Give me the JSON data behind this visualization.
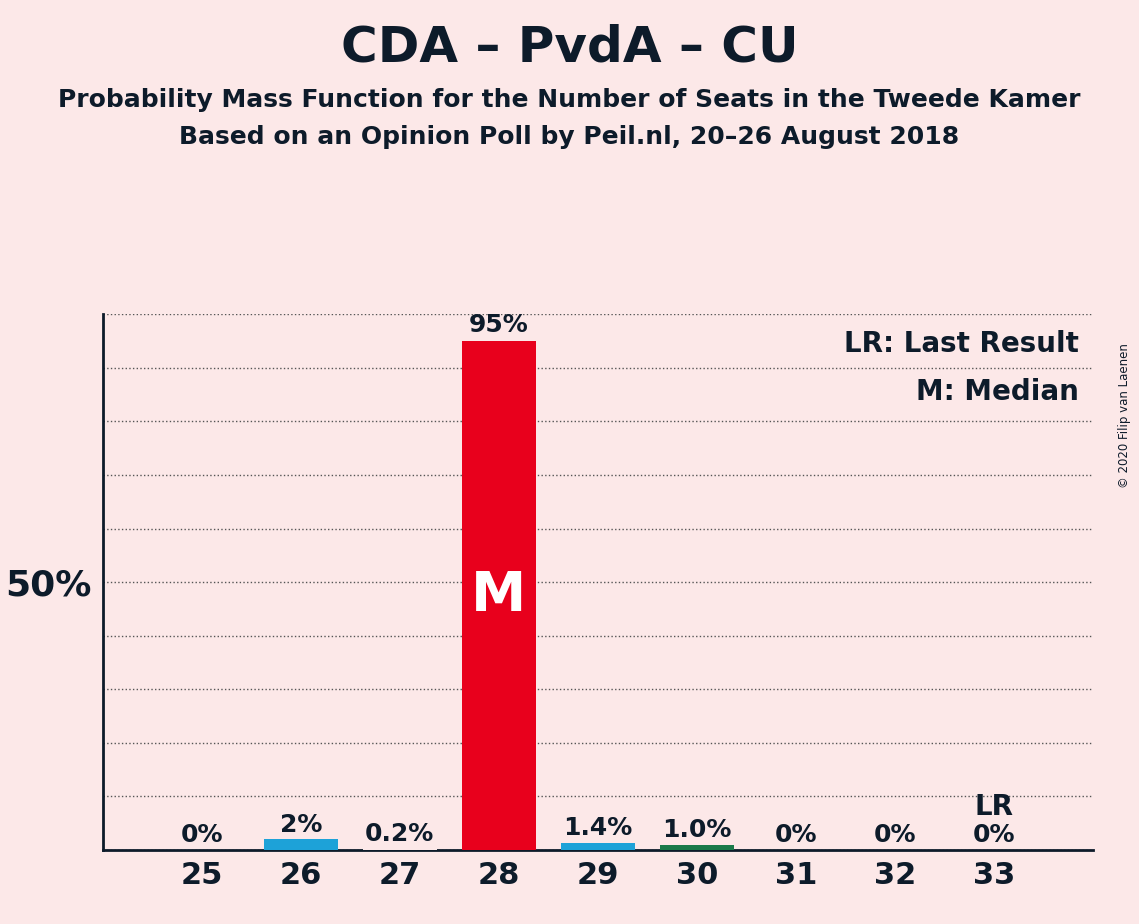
{
  "title": "CDA – PvdA – CU",
  "subtitle1": "Probability Mass Function for the Number of Seats in the Tweede Kamer",
  "subtitle2": "Based on an Opinion Poll by Peil.nl, 20–26 August 2018",
  "copyright": "© 2020 Filip van Laenen",
  "legend_lr": "LR: Last Result",
  "legend_m": "M: Median",
  "background_color": "#fce8e8",
  "seats": [
    25,
    26,
    27,
    28,
    29,
    30,
    31,
    32,
    33
  ],
  "values": [
    0.0,
    2.0,
    0.2,
    95.0,
    1.4,
    1.0,
    0.0,
    0.0,
    0.0
  ],
  "bar_colors": [
    "#fce8e8",
    "#1da2d8",
    "#fce8e8",
    "#e8001c",
    "#1da2d8",
    "#1a7a4a",
    "#fce8e8",
    "#fce8e8",
    "#fce8e8"
  ],
  "labels": [
    "0%",
    "2%",
    "0.2%",
    "95%",
    "1.4%",
    "1.0%",
    "0%",
    "0%",
    "0%"
  ],
  "median_seat": 28,
  "lr_seat": 33,
  "ylim": [
    0,
    100
  ],
  "yticks": [
    0,
    10,
    20,
    30,
    40,
    50,
    60,
    70,
    80,
    90,
    100
  ],
  "ytick_labels": [
    "",
    "",
    "",
    "",
    "",
    "50%",
    "",
    "",
    "",
    "",
    ""
  ],
  "title_fontsize": 36,
  "subtitle_fontsize": 18,
  "bar_label_fontsize": 18,
  "legend_fontsize": 20,
  "text_color": "#0d1b2a",
  "bar_width": 0.75
}
